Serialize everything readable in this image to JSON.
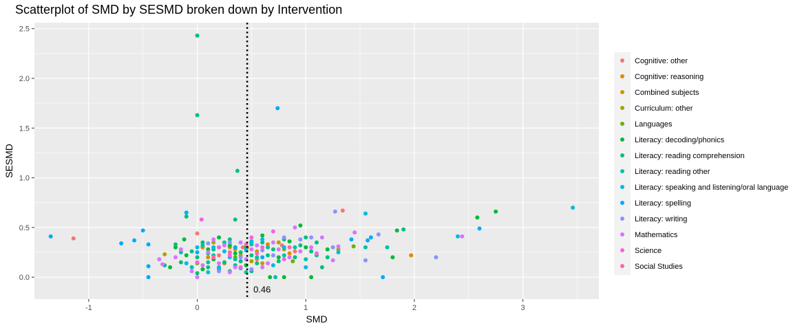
{
  "chart_data": {
    "type": "scatter",
    "title": "Scatterplot of SMD by SESMD broken down by Intervention",
    "xlabel": "SMD",
    "ylabel": "SESMD",
    "xlim": [
      -1.5,
      3.7
    ],
    "ylim": [
      -0.22,
      2.56
    ],
    "x_ticks": [
      -1,
      0,
      1,
      2,
      3
    ],
    "y_ticks": [
      0.0,
      0.5,
      1.0,
      1.5,
      2.0,
      2.5
    ],
    "x_tick_labels": [
      "-1",
      "0",
      "1",
      "2",
      "3"
    ],
    "y_tick_labels": [
      "0.0",
      "0.5",
      "1.0",
      "1.5",
      "2.0",
      "2.5"
    ],
    "grid": true,
    "legend_position": "right",
    "reference_line": {
      "x": 0.46,
      "label": "0.46",
      "style": "dotted"
    },
    "series": [
      {
        "name": "Cognitive: other",
        "color": "#F8766D",
        "points": [
          [
            -1.14,
            0.39
          ],
          [
            1.34,
            0.67
          ],
          [
            0.0,
            0.44
          ],
          [
            0.42,
            0.3
          ],
          [
            0.78,
            0.32
          ],
          [
            0.9,
            0.26
          ],
          [
            0.2,
            0.22
          ],
          [
            0.55,
            0.18
          ]
        ]
      },
      {
        "name": "Cognitive: reasoning",
        "color": "#E58700",
        "points": [
          [
            1.97,
            0.22
          ],
          [
            0.46,
            0.3
          ],
          [
            0.35,
            0.28
          ],
          [
            0.65,
            0.33
          ],
          [
            0.85,
            0.24
          ],
          [
            0.25,
            0.14
          ],
          [
            0.05,
            0.3
          ]
        ]
      },
      {
        "name": "Combined subjects",
        "color": "#C99800",
        "points": [
          [
            0.4,
            0.22
          ],
          [
            0.3,
            0.3
          ],
          [
            0.55,
            0.26
          ],
          [
            0.75,
            0.35
          ],
          [
            0.1,
            0.2
          ],
          [
            0.6,
            0.14
          ]
        ]
      },
      {
        "name": "Curriculum: other",
        "color": "#A3A500",
        "points": [
          [
            -0.3,
            0.23
          ],
          [
            0.5,
            0.16
          ],
          [
            0.8,
            0.28
          ],
          [
            1.3,
            0.28
          ],
          [
            0.15,
            0.35
          ]
        ]
      },
      {
        "name": "Languages",
        "color": "#6BB100",
        "points": [
          [
            1.44,
            0.31
          ],
          [
            0.88,
            0.16
          ],
          [
            0.35,
            0.2
          ],
          [
            0.0,
            0.14
          ]
        ]
      },
      {
        "name": "Literacy: decoding/phonics",
        "color": "#00BA38",
        "points": [
          [
            2.75,
            0.66
          ],
          [
            2.58,
            0.6
          ],
          [
            1.8,
            0.2
          ],
          [
            1.84,
            0.47
          ],
          [
            0.67,
            0.0
          ],
          [
            1.05,
            0.0
          ],
          [
            0.8,
            0.0
          ],
          [
            -0.12,
            0.38
          ],
          [
            -0.25,
            0.1
          ],
          [
            0.3,
            0.32
          ],
          [
            0.5,
            0.35
          ],
          [
            0.95,
            0.52
          ],
          [
            1.2,
            0.28
          ],
          [
            -0.1,
            0.22
          ],
          [
            0.2,
            0.4
          ],
          [
            0.6,
            0.42
          ],
          [
            0.05,
            0.08
          ],
          [
            0.35,
            0.24
          ],
          [
            0.75,
            0.2
          ],
          [
            1.0,
            0.3
          ],
          [
            -0.2,
            0.3
          ],
          [
            0.15,
            0.18
          ],
          [
            0.45,
            0.12
          ],
          [
            0.85,
            0.36
          ],
          [
            0.1,
            0.28
          ]
        ]
      },
      {
        "name": "Literacy: reading comprehension",
        "color": "#00BF7D",
        "points": [
          [
            0.0,
            2.43
          ],
          [
            0.0,
            1.63
          ],
          [
            0.37,
            1.07
          ],
          [
            0.35,
            0.58
          ],
          [
            -0.1,
            0.61
          ],
          [
            1.9,
            0.48
          ],
          [
            1.1,
            0.35
          ],
          [
            0.6,
            0.35
          ],
          [
            0.4,
            0.25
          ],
          [
            0.2,
            0.3
          ],
          [
            0.0,
            0.2
          ],
          [
            -0.15,
            0.15
          ],
          [
            0.1,
            0.1
          ],
          [
            0.3,
            0.06
          ],
          [
            0.5,
            0.22
          ],
          [
            0.7,
            0.28
          ],
          [
            0.9,
            0.2
          ],
          [
            1.0,
            0.4
          ],
          [
            1.2,
            0.2
          ],
          [
            -0.2,
            0.33
          ],
          [
            0.15,
            0.28
          ],
          [
            0.25,
            0.15
          ],
          [
            0.45,
            0.3
          ],
          [
            0.05,
            0.35
          ],
          [
            0.55,
            0.14
          ],
          [
            0.8,
            0.38
          ],
          [
            1.15,
            0.1
          ],
          [
            -0.3,
            0.12
          ],
          [
            0.35,
            0.12
          ],
          [
            0.0,
            0.04
          ],
          [
            0.65,
            0.22
          ],
          [
            0.95,
            0.32
          ],
          [
            0.1,
            0.24
          ],
          [
            0.3,
            0.38
          ],
          [
            0.5,
            0.06
          ],
          [
            -0.05,
            0.26
          ],
          [
            0.2,
            0.08
          ],
          [
            0.75,
            0.16
          ],
          [
            1.05,
            0.26
          ],
          [
            0.4,
            0.16
          ]
        ]
      },
      {
        "name": "Literacy: reading other",
        "color": "#00C1A3",
        "points": [
          [
            1.55,
            0.3
          ],
          [
            1.75,
            0.3
          ],
          [
            0.72,
            0.0
          ],
          [
            0.3,
            0.25
          ],
          [
            0.1,
            0.15
          ],
          [
            0.5,
            0.33
          ],
          [
            0.8,
            0.22
          ],
          [
            1.0,
            0.18
          ],
          [
            -0.05,
            0.1
          ],
          [
            0.25,
            0.35
          ],
          [
            0.45,
            0.05
          ],
          [
            0.65,
            0.3
          ],
          [
            0.15,
            0.22
          ],
          [
            0.35,
            0.18
          ],
          [
            0.9,
            0.3
          ],
          [
            1.1,
            0.22
          ],
          [
            -0.15,
            0.25
          ],
          [
            0.05,
            0.32
          ],
          [
            0.55,
            0.2
          ]
        ]
      },
      {
        "name": "Literacy: speaking and listening/oral language",
        "color": "#00BAE0",
        "points": [
          [
            3.46,
            0.7
          ],
          [
            2.4,
            0.41
          ],
          [
            1.55,
            0.64
          ],
          [
            0.45,
            0.27
          ],
          [
            0.2,
            0.1
          ],
          [
            0.0,
            0.3
          ],
          [
            0.6,
            0.38
          ],
          [
            0.3,
            0.2
          ],
          [
            0.1,
            0.05
          ],
          [
            0.8,
            0.3
          ],
          [
            1.0,
            0.1
          ],
          [
            -0.1,
            0.14
          ],
          [
            0.4,
            0.09
          ],
          [
            0.7,
            0.12
          ],
          [
            0.15,
            0.3
          ],
          [
            0.5,
            0.36
          ],
          [
            1.3,
            0.25
          ],
          [
            0.25,
            0.26
          ]
        ]
      },
      {
        "name": "Literacy: spelling",
        "color": "#00A9FF",
        "points": [
          [
            0.74,
            1.7
          ],
          [
            -1.35,
            0.41
          ],
          [
            -0.7,
            0.34
          ],
          [
            -0.58,
            0.37
          ],
          [
            -0.5,
            0.47
          ],
          [
            -0.45,
            0.33
          ],
          [
            -0.45,
            0.11
          ],
          [
            -0.45,
            0.0
          ],
          [
            -0.1,
            0.65
          ],
          [
            2.6,
            0.49
          ],
          [
            1.71,
            0.0
          ],
          [
            1.57,
            0.37
          ],
          [
            1.6,
            0.4
          ],
          [
            1.42,
            0.38
          ],
          [
            0.35,
            0.3
          ],
          [
            0.0,
            0.25
          ],
          [
            0.6,
            0.2
          ]
        ]
      },
      {
        "name": "Literacy: writing",
        "color": "#8B93FF",
        "points": [
          [
            1.27,
            0.66
          ],
          [
            2.2,
            0.2
          ],
          [
            1.55,
            0.17
          ],
          [
            1.67,
            0.43
          ],
          [
            0.95,
            0.38
          ],
          [
            0.4,
            0.2
          ],
          [
            0.1,
            0.34
          ],
          [
            0.6,
            0.27
          ],
          [
            0.8,
            0.4
          ],
          [
            1.25,
            0.3
          ],
          [
            0.2,
            0.06
          ],
          [
            0.5,
            0.08
          ],
          [
            1.05,
            0.4
          ],
          [
            0.3,
            0.35
          ],
          [
            0.7,
            0.22
          ]
        ]
      },
      {
        "name": "Mathematics",
        "color": "#D575FE",
        "points": [
          [
            2.44,
            0.41
          ],
          [
            1.45,
            0.45
          ],
          [
            1.3,
            0.31
          ],
          [
            1.25,
            0.17
          ],
          [
            0.9,
            0.5
          ],
          [
            0.0,
            0.0
          ],
          [
            0.2,
            0.14
          ],
          [
            0.4,
            0.35
          ],
          [
            0.6,
            0.1
          ],
          [
            -0.2,
            0.2
          ],
          [
            -0.35,
            0.18
          ],
          [
            -0.32,
            0.13
          ],
          [
            -0.15,
            0.28
          ],
          [
            0.1,
            0.25
          ],
          [
            0.3,
            0.05
          ],
          [
            0.5,
            0.28
          ],
          [
            0.7,
            0.35
          ],
          [
            0.85,
            0.2
          ],
          [
            1.05,
            0.3
          ],
          [
            1.15,
            0.4
          ],
          [
            0.05,
            0.12
          ],
          [
            0.25,
            0.32
          ],
          [
            0.45,
            0.18
          ],
          [
            0.65,
            0.14
          ],
          [
            0.95,
            0.26
          ],
          [
            0.15,
            0.38
          ],
          [
            0.35,
            0.1
          ],
          [
            0.55,
            0.32
          ],
          [
            0.75,
            0.28
          ],
          [
            -0.05,
            0.06
          ]
        ]
      },
      {
        "name": "Science",
        "color": "#F962DD",
        "points": [
          [
            0.04,
            0.58
          ],
          [
            0.7,
            0.46
          ],
          [
            0.5,
            0.4
          ],
          [
            0.2,
            0.3
          ],
          [
            0.0,
            0.15
          ],
          [
            0.3,
            0.22
          ],
          [
            0.8,
            0.18
          ],
          [
            1.1,
            0.24
          ],
          [
            0.4,
            0.1
          ],
          [
            0.6,
            0.3
          ]
        ]
      },
      {
        "name": "Social Studies",
        "color": "#FF65AC",
        "points": [
          [
            0.3,
            0.25
          ],
          [
            0.55,
            0.24
          ],
          [
            0.85,
            0.3
          ],
          [
            0.15,
            0.2
          ],
          [
            0.45,
            0.33
          ]
        ]
      }
    ]
  }
}
